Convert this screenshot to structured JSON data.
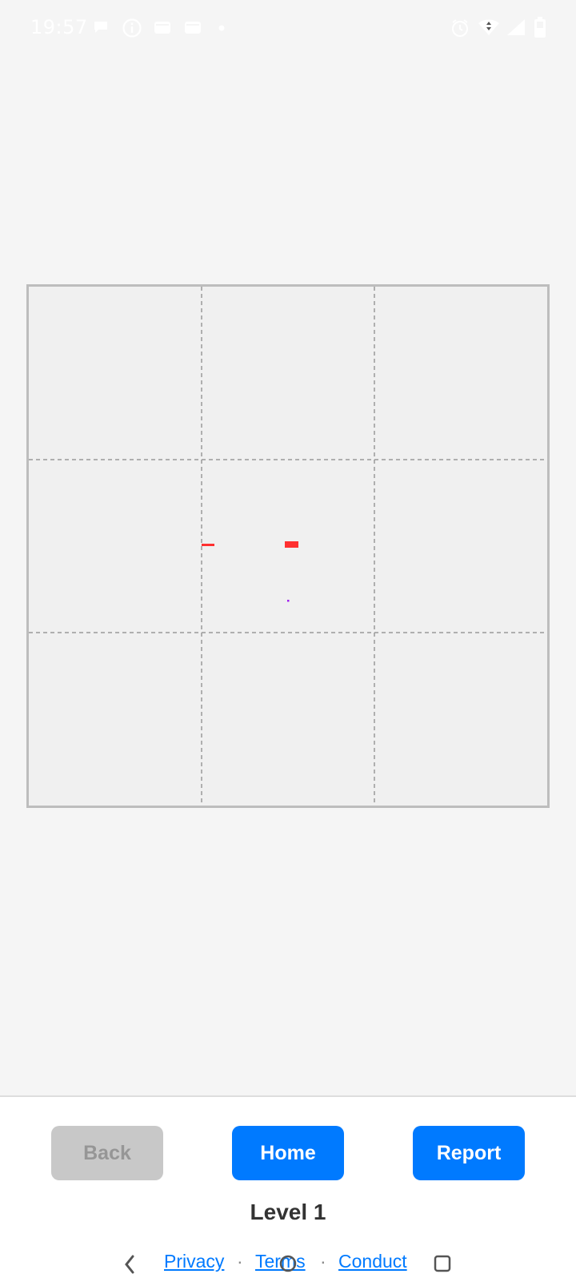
{
  "status_bar": {
    "time": "19:57",
    "left_icons": [
      "chat-icon",
      "info-icon",
      "storage-icon",
      "card-icon",
      "dot-icon"
    ],
    "right_icons": [
      "alarm-icon",
      "wifi-icon",
      "signal-icon",
      "battery-icon"
    ]
  },
  "board": {
    "grid": "3x3",
    "border_color": "#bdbdbd",
    "background": "#f0f0f0",
    "divider_color": "#999999",
    "pieces": [
      {
        "name": "red-dash-left",
        "color": "#ff3030"
      },
      {
        "name": "red-block-center",
        "color": "#ff3030"
      },
      {
        "name": "purple-dot",
        "color": "#a020f0"
      }
    ]
  },
  "controls": {
    "back_label": "Back",
    "home_label": "Home",
    "report_label": "Report",
    "back_color": "#c8c8c8",
    "accent_color": "#007aff"
  },
  "level_label": "Level 1",
  "footer_links": {
    "privacy": "Privacy",
    "terms": "Terms",
    "conduct": "Conduct",
    "separator": "·"
  },
  "nav_bar": {
    "icons": [
      "back-nav-icon",
      "home-nav-icon",
      "recents-nav-icon"
    ]
  }
}
